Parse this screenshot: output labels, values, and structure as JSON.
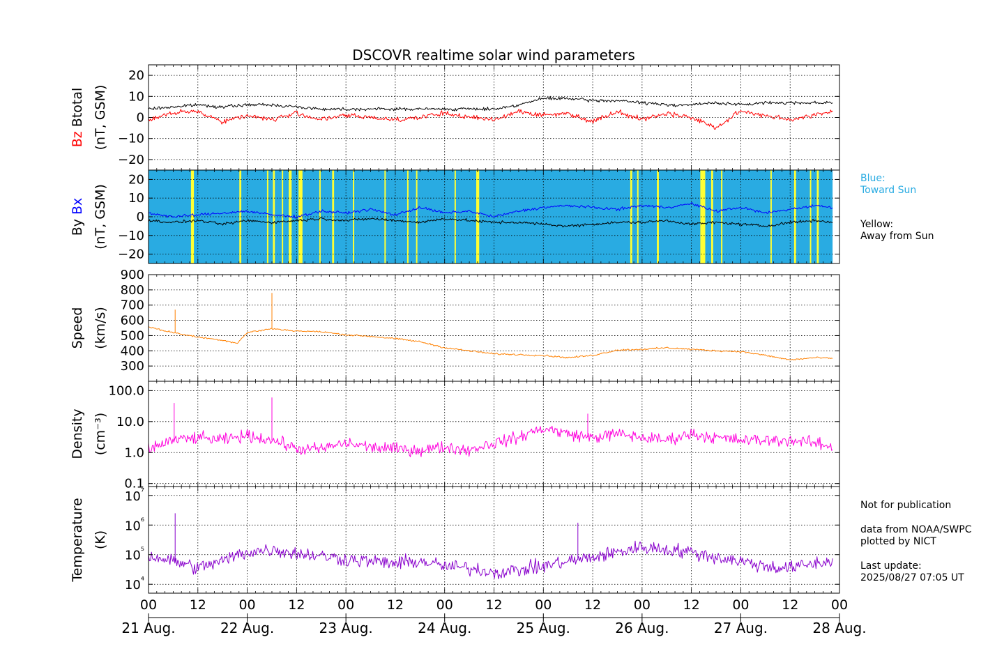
{
  "figure": {
    "title": "DSCOVR realtime solar wind parameters"
  },
  "colors": {
    "bz": "#ff0000",
    "btotal": "#000000",
    "bx": "#0000ff",
    "by": "#000000",
    "toward_sun_bg": "#29abe2",
    "away_from_sun_bg": "#ffff33",
    "speed": "#ff8000",
    "density": "#ff00dd",
    "temperature": "#8800cc"
  },
  "side_notes": {
    "blue_line1": "Blue:",
    "blue_line2": "Toward Sun",
    "yellow_line1": "Yellow:",
    "yellow_line2": "Away from Sun",
    "not_for_publication": "Not for publication",
    "data_from": "data from NOAA/SWPC",
    "plotted_by": "plotted by NICT",
    "last_update_label": "Last update:",
    "last_update_value": "2025/08/27 07:05 UT"
  },
  "chart_data": [
    {
      "type": "line",
      "panel": "magnetic-field-total",
      "ylabel_parts": [
        "Bz",
        "Btotal",
        "(nT, GSM)"
      ],
      "ylim": [
        -25,
        25
      ],
      "yticks": [
        20,
        10,
        0,
        -10,
        -20
      ],
      "ytick_labels": [
        "20",
        "10",
        "0",
        "−10",
        "−20"
      ],
      "x_unit": "days since 21 Aug. 00 UT",
      "grid": true,
      "series": [
        {
          "name": "Btotal",
          "color_key": "btotal",
          "x": [
            0,
            0.25,
            0.5,
            0.75,
            1,
            1.25,
            1.5,
            1.75,
            2,
            2.25,
            2.5,
            2.75,
            3,
            3.25,
            3.5,
            3.75,
            4,
            4.25,
            4.5,
            4.75,
            5,
            5.25,
            5.5,
            5.75,
            6,
            6.25,
            6.5,
            6.75,
            6.93
          ],
          "y": [
            4,
            5,
            6,
            5,
            6,
            6,
            5,
            4,
            4,
            4,
            4,
            4,
            4,
            4,
            4,
            6,
            9,
            9,
            8,
            8,
            7,
            6,
            6,
            7,
            6,
            7,
            7,
            7,
            7
          ]
        },
        {
          "name": "Bz",
          "color_key": "bz",
          "x": [
            0,
            0.25,
            0.5,
            0.75,
            1,
            1.25,
            1.5,
            1.75,
            2,
            2.25,
            2.5,
            2.75,
            3,
            3.25,
            3.5,
            3.75,
            4,
            4.25,
            4.5,
            4.75,
            5,
            5.25,
            5.5,
            5.75,
            6,
            6.25,
            6.5,
            6.75,
            6.93
          ],
          "y": [
            -1,
            2,
            3,
            -2,
            1,
            -1,
            2,
            -1,
            1,
            0,
            -1,
            0,
            2,
            0,
            -1,
            3,
            1,
            2,
            -2,
            3,
            -1,
            2,
            0,
            -5,
            3,
            1,
            -1,
            1,
            3
          ]
        }
      ]
    },
    {
      "type": "line",
      "panel": "magnetic-field-components",
      "ylabel_parts": [
        "By",
        "Bx",
        "(nT, GSM)"
      ],
      "ylim": [
        -25,
        25
      ],
      "yticks": [
        20,
        10,
        0,
        -10,
        -20
      ],
      "ytick_labels": [
        "20",
        "10",
        "0",
        "−10",
        "−20"
      ],
      "x_unit": "days since 21 Aug. 00 UT",
      "grid": true,
      "background_band_end": 6.93,
      "away_from_sun_intervals": [
        [
          0.43,
          0.46
        ],
        [
          0.92,
          0.94
        ],
        [
          1.2,
          1.21
        ],
        [
          1.26,
          1.28
        ],
        [
          1.35,
          1.36
        ],
        [
          1.42,
          1.45
        ],
        [
          1.52,
          1.56
        ],
        [
          1.73,
          1.74
        ],
        [
          1.86,
          1.88
        ],
        [
          2.07,
          2.08
        ],
        [
          2.39,
          2.4
        ],
        [
          2.62,
          2.63
        ],
        [
          2.71,
          2.72
        ],
        [
          3.1,
          3.11
        ],
        [
          3.32,
          3.35
        ],
        [
          4.88,
          4.9
        ],
        [
          4.95,
          4.96
        ],
        [
          5.15,
          5.17
        ],
        [
          5.59,
          5.64
        ],
        [
          5.7,
          5.72
        ],
        [
          5.8,
          5.81
        ],
        [
          6.3,
          6.31
        ],
        [
          6.54,
          6.56
        ],
        [
          6.7,
          6.71
        ],
        [
          6.77,
          6.79
        ]
      ],
      "series": [
        {
          "name": "Bx",
          "color_key": "bx",
          "x": [
            0,
            0.25,
            0.5,
            0.75,
            1,
            1.25,
            1.5,
            1.75,
            2,
            2.25,
            2.5,
            2.75,
            3,
            3.25,
            3.5,
            3.75,
            4,
            4.25,
            4.5,
            4.75,
            5,
            5.25,
            5.5,
            5.75,
            6,
            6.25,
            6.5,
            6.75,
            6.93
          ],
          "y": [
            2,
            0,
            1,
            2,
            3,
            1,
            0,
            3,
            2,
            4,
            1,
            5,
            2,
            3,
            0,
            3,
            5,
            6,
            5,
            4,
            6,
            5,
            7,
            3,
            5,
            2,
            4,
            6,
            5
          ]
        },
        {
          "name": "By",
          "color_key": "by",
          "x": [
            0,
            0.25,
            0.5,
            0.75,
            1,
            1.25,
            1.5,
            1.75,
            2,
            2.25,
            2.5,
            2.75,
            3,
            3.25,
            3.5,
            3.75,
            4,
            4.25,
            4.5,
            4.75,
            5,
            5.25,
            5.5,
            5.75,
            6,
            6.25,
            6.5,
            6.75,
            6.93
          ],
          "y": [
            -2,
            -3,
            -2,
            -4,
            -2,
            -3,
            -2,
            -1,
            -2,
            -1,
            -2,
            -3,
            -1,
            -2,
            -3,
            -3,
            -4,
            -5,
            -4,
            -3,
            -3,
            -2,
            -4,
            -3,
            -4,
            -5,
            -3,
            -2,
            -3
          ]
        }
      ]
    },
    {
      "type": "line",
      "panel": "speed",
      "ylabel_parts": [
        "Speed",
        "(km/s)"
      ],
      "ylim": [
        200,
        900
      ],
      "yticks": [
        900,
        800,
        700,
        600,
        500,
        400,
        300
      ],
      "ytick_labels": [
        "900",
        "800",
        "700",
        "600",
        "500",
        "400",
        "300"
      ],
      "x_unit": "days since 21 Aug. 00 UT",
      "grid": true,
      "series": [
        {
          "name": "Speed",
          "color_key": "speed",
          "x": [
            0,
            0.1,
            0.25,
            0.5,
            0.75,
            0.9,
            1,
            1.25,
            1.5,
            1.75,
            2,
            2.25,
            2.5,
            2.75,
            3,
            3.25,
            3.5,
            3.75,
            4,
            4.25,
            4.5,
            4.75,
            5,
            5.25,
            5.5,
            5.75,
            6,
            6.25,
            6.5,
            6.75,
            6.93
          ],
          "y": [
            560,
            540,
            520,
            490,
            470,
            450,
            520,
            545,
            530,
            525,
            505,
            495,
            480,
            460,
            420,
            400,
            380,
            375,
            370,
            355,
            370,
            405,
            410,
            420,
            410,
            400,
            395,
            370,
            340,
            355,
            350
          ]
        }
      ],
      "spikes": [
        [
          0.27,
          670
        ],
        [
          1.25,
          780
        ]
      ]
    },
    {
      "type": "line",
      "panel": "density",
      "ylabel_parts": [
        "Density",
        "(cm⁻³)"
      ],
      "yscale": "log",
      "ylim": [
        0.08,
        200
      ],
      "yticks": [
        100,
        10,
        1,
        0.1
      ],
      "ytick_labels": [
        "100.0",
        "10.0",
        "1.0",
        "0.1"
      ],
      "x_unit": "days since 21 Aug. 00 UT",
      "grid": true,
      "series": [
        {
          "name": "Density",
          "color_key": "density",
          "x": [
            0,
            0.25,
            0.5,
            0.75,
            1,
            1.25,
            1.5,
            1.75,
            2,
            2.25,
            2.5,
            2.75,
            3,
            3.25,
            3.5,
            3.75,
            4,
            4.25,
            4.5,
            4.75,
            5,
            5.25,
            5.5,
            5.75,
            6,
            6.25,
            6.5,
            6.75,
            6.93
          ],
          "y": [
            1.2,
            2.5,
            3,
            2.5,
            3.5,
            2.5,
            1.3,
            1.3,
            2,
            1.5,
            1.3,
            1.2,
            1.5,
            1.2,
            2,
            3,
            6,
            4,
            3,
            4,
            3,
            2.5,
            4,
            3,
            2.5,
            2.5,
            2.5,
            2,
            1.5
          ]
        }
      ],
      "spikes": [
        [
          0.26,
          40
        ],
        [
          1.25,
          60
        ],
        [
          4.45,
          18
        ],
        [
          1.5,
          1.0
        ]
      ]
    },
    {
      "type": "line",
      "panel": "temperature",
      "ylabel_parts": [
        "Temperature",
        "(K)"
      ],
      "yscale": "log",
      "ylim": [
        5000,
        20000000
      ],
      "yticks": [
        10000000,
        1000000,
        100000,
        10000
      ],
      "ytick_labels": [
        "10⁷",
        "10⁶",
        "10⁵",
        "10⁴"
      ],
      "x_unit": "days since 21 Aug. 00 UT",
      "grid": true,
      "series": [
        {
          "name": "Temperature",
          "color_key": "temperature",
          "x": [
            0,
            0.25,
            0.5,
            0.75,
            1,
            1.25,
            1.5,
            1.75,
            2,
            2.25,
            2.5,
            2.75,
            3,
            3.25,
            3.5,
            3.75,
            4,
            4.25,
            4.5,
            4.75,
            5,
            5.25,
            5.5,
            5.75,
            6,
            6.25,
            6.5,
            6.75,
            6.93
          ],
          "y": [
            90000,
            60000,
            35000,
            60000,
            120000,
            150000,
            110000,
            90000,
            70000,
            60000,
            50000,
            60000,
            40000,
            35000,
            25000,
            30000,
            40000,
            60000,
            80000,
            120000,
            180000,
            150000,
            120000,
            80000,
            60000,
            40000,
            35000,
            50000,
            60000
          ]
        }
      ],
      "spikes": [
        [
          0.27,
          2500000
        ],
        [
          4.35,
          1200000
        ]
      ]
    }
  ],
  "x_axis": {
    "xlim": [
      0,
      7
    ],
    "hour_ticks": [
      0,
      0.5,
      1,
      1.5,
      2,
      2.5,
      3,
      3.5,
      4,
      4.5,
      5,
      5.5,
      6,
      6.5,
      7
    ],
    "hour_labels": [
      "00",
      "12",
      "00",
      "12",
      "00",
      "12",
      "00",
      "12",
      "00",
      "12",
      "00",
      "12",
      "00",
      "12",
      "00"
    ],
    "date_ticks": [
      0,
      1,
      2,
      3,
      4,
      5,
      6,
      7
    ],
    "date_labels": [
      "21 Aug.",
      "22 Aug.",
      "23 Aug.",
      "24 Aug.",
      "25 Aug.",
      "26 Aug.",
      "27 Aug.",
      "28 Aug."
    ]
  }
}
